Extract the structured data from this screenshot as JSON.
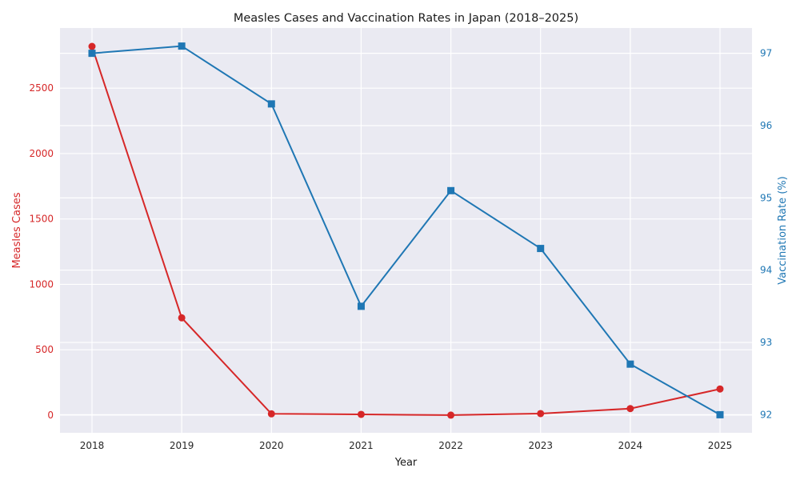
{
  "chart_data": {
    "type": "line",
    "title": "Measles Cases and Vaccination Rates in Japan (2018–2025)",
    "xlabel": "Year",
    "x": [
      2018,
      2019,
      2020,
      2021,
      2022,
      2023,
      2024,
      2025
    ],
    "y_left": {
      "label": "Measles Cases",
      "color": "#d62728",
      "ylim": [
        -135,
        2960
      ],
      "ticks": [
        0,
        500,
        1000,
        1500,
        2000,
        2500
      ]
    },
    "y_right": {
      "label": "Vaccination Rate (%)",
      "color": "#1f77b4",
      "ylim": [
        91.75,
        97.35
      ],
      "ticks": [
        92,
        93,
        94,
        95,
        96,
        97
      ]
    },
    "series": [
      {
        "axis": "left",
        "color": "#d62728",
        "marker": "circle",
        "values": [
          2819,
          744,
          10,
          6,
          0,
          12,
          50,
          200
        ]
      },
      {
        "axis": "right",
        "color": "#1f77b4",
        "marker": "square",
        "values": [
          97.0,
          97.1,
          96.3,
          93.5,
          95.1,
          94.3,
          92.7,
          92.0
        ]
      }
    ],
    "grid": true,
    "background": "#eaeaf2"
  }
}
